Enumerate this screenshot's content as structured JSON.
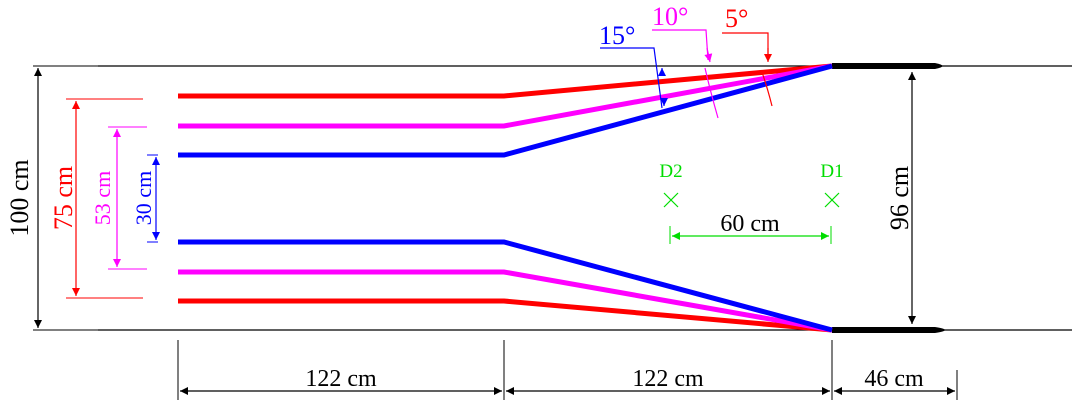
{
  "colors": {
    "red": "#ff0000",
    "magenta": "#ff00ff",
    "blue": "#0000ff",
    "green": "#00dd00",
    "black": "#000000"
  },
  "angles": {
    "a15": "15°",
    "a10": "10°",
    "a5": "5°"
  },
  "dimensions": {
    "total_width": "100 cm",
    "width_75": "75 cm",
    "width_53": "53 cm",
    "width_30": "30 cm",
    "outlet_width": "96 cm",
    "sensor_spacing": "60 cm",
    "length_1": "122 cm",
    "length_2": "122 cm",
    "length_3": "46 cm"
  },
  "sensors": {
    "d2": "D2",
    "d1": "D1"
  }
}
